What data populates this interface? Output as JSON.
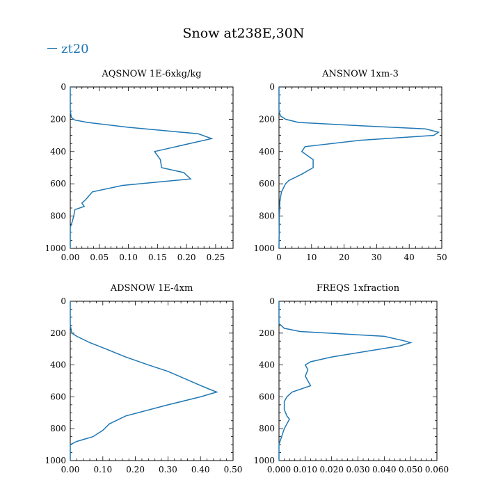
{
  "title": "Snow at238E,30N",
  "legend": {
    "label": "zt20",
    "color": "#1f77b4"
  },
  "chart_data": [
    {
      "type": "line",
      "title": "AQSNOW  1E-6xkg/kg",
      "xlim": [
        0,
        0.28
      ],
      "xticks": [
        0.0,
        0.05,
        0.1,
        0.15,
        0.2,
        0.25
      ],
      "xtick_labels": [
        "0.00",
        "0.05",
        "0.10",
        "0.15",
        "0.20",
        "0.25"
      ],
      "ylim": [
        0,
        1000
      ],
      "yticks": [
        0,
        200,
        400,
        600,
        800,
        1000
      ],
      "ytick_labels": [
        "0",
        "200",
        "400",
        "600",
        "800",
        "1000"
      ],
      "series": [
        {
          "name": "zt20",
          "x": [
            0.0,
            0.0,
            0.002,
            0.008,
            0.03,
            0.1,
            0.22,
            0.243,
            0.145,
            0.155,
            0.157,
            0.195,
            0.207,
            0.09,
            0.038,
            0.026,
            0.02,
            0.024,
            0.008,
            0.006,
            0.002,
            0.0,
            0.0
          ],
          "y": [
            0,
            150,
            190,
            205,
            220,
            250,
            290,
            320,
            400,
            450,
            500,
            530,
            570,
            610,
            650,
            700,
            720,
            740,
            760,
            800,
            850,
            870,
            1000
          ]
        }
      ]
    },
    {
      "type": "line",
      "title": "ANSNOW  1xm-3",
      "xlim": [
        0,
        50
      ],
      "xticks": [
        0,
        10,
        20,
        30,
        40,
        50
      ],
      "xtick_labels": [
        "0",
        "10",
        "20",
        "30",
        "40",
        "50"
      ],
      "ylim": [
        0,
        1000
      ],
      "yticks": [
        0,
        200,
        400,
        600,
        800,
        1000
      ],
      "ytick_labels": [
        "0",
        "200",
        "400",
        "600",
        "800",
        "1000"
      ],
      "series": [
        {
          "name": "zt20",
          "x": [
            0.0,
            0.0,
            0.5,
            2.0,
            6.0,
            25.0,
            45.0,
            49.0,
            47.5,
            25.0,
            8.0,
            7.0,
            10.5,
            10.5,
            7.0,
            5.0,
            3.0,
            2.0,
            0.8,
            0.3,
            0.1,
            0.0
          ],
          "y": [
            0,
            150,
            180,
            200,
            220,
            240,
            260,
            280,
            300,
            330,
            370,
            400,
            450,
            500,
            540,
            560,
            580,
            600,
            650,
            700,
            800,
            1000
          ]
        }
      ]
    },
    {
      "type": "line",
      "title": "ADSNOW  1E-4xm",
      "xlim": [
        0,
        0.5
      ],
      "xticks": [
        0.0,
        0.1,
        0.2,
        0.3,
        0.4,
        0.5
      ],
      "xtick_labels": [
        "0.00",
        "0.10",
        "0.20",
        "0.30",
        "0.40",
        "0.50"
      ],
      "ylim": [
        0,
        1000
      ],
      "yticks": [
        0,
        200,
        400,
        600,
        800,
        1000
      ],
      "ytick_labels": [
        "0",
        "200",
        "400",
        "600",
        "800",
        "1000"
      ],
      "series": [
        {
          "name": "zt20",
          "x": [
            0.0,
            0.0,
            0.005,
            0.02,
            0.06,
            0.11,
            0.17,
            0.24,
            0.3,
            0.345,
            0.39,
            0.425,
            0.45,
            0.4,
            0.3,
            0.17,
            0.12,
            0.1,
            0.07,
            0.02,
            0.0,
            0.0
          ],
          "y": [
            0,
            150,
            200,
            220,
            260,
            300,
            350,
            400,
            440,
            480,
            520,
            550,
            570,
            600,
            650,
            720,
            770,
            810,
            850,
            880,
            900,
            1000
          ]
        }
      ]
    },
    {
      "type": "line",
      "title": "FREQS  1xfraction",
      "xlim": [
        0,
        0.06
      ],
      "xticks": [
        0.0,
        0.01,
        0.02,
        0.03,
        0.04,
        0.05,
        0.06
      ],
      "xtick_labels": [
        "0.000",
        "0.010",
        "0.020",
        "0.030",
        "0.040",
        "0.050",
        "0.060"
      ],
      "ylim": [
        0,
        1000
      ],
      "yticks": [
        0,
        200,
        400,
        600,
        800,
        1000
      ],
      "ytick_labels": [
        "0",
        "200",
        "400",
        "600",
        "800",
        "1000"
      ],
      "series": [
        {
          "name": "zt20",
          "x": [
            0.0,
            0.0,
            0.002,
            0.008,
            0.04,
            0.048,
            0.05,
            0.046,
            0.02,
            0.012,
            0.01,
            0.011,
            0.01,
            0.011,
            0.012,
            0.005,
            0.003,
            0.002,
            0.002,
            0.003,
            0.004,
            0.002,
            0.001,
            0.0,
            0.0
          ],
          "y": [
            0,
            140,
            170,
            190,
            220,
            250,
            260,
            280,
            350,
            380,
            400,
            430,
            470,
            500,
            530,
            570,
            600,
            630,
            680,
            720,
            740,
            800,
            850,
            900,
            1000
          ]
        }
      ]
    }
  ]
}
